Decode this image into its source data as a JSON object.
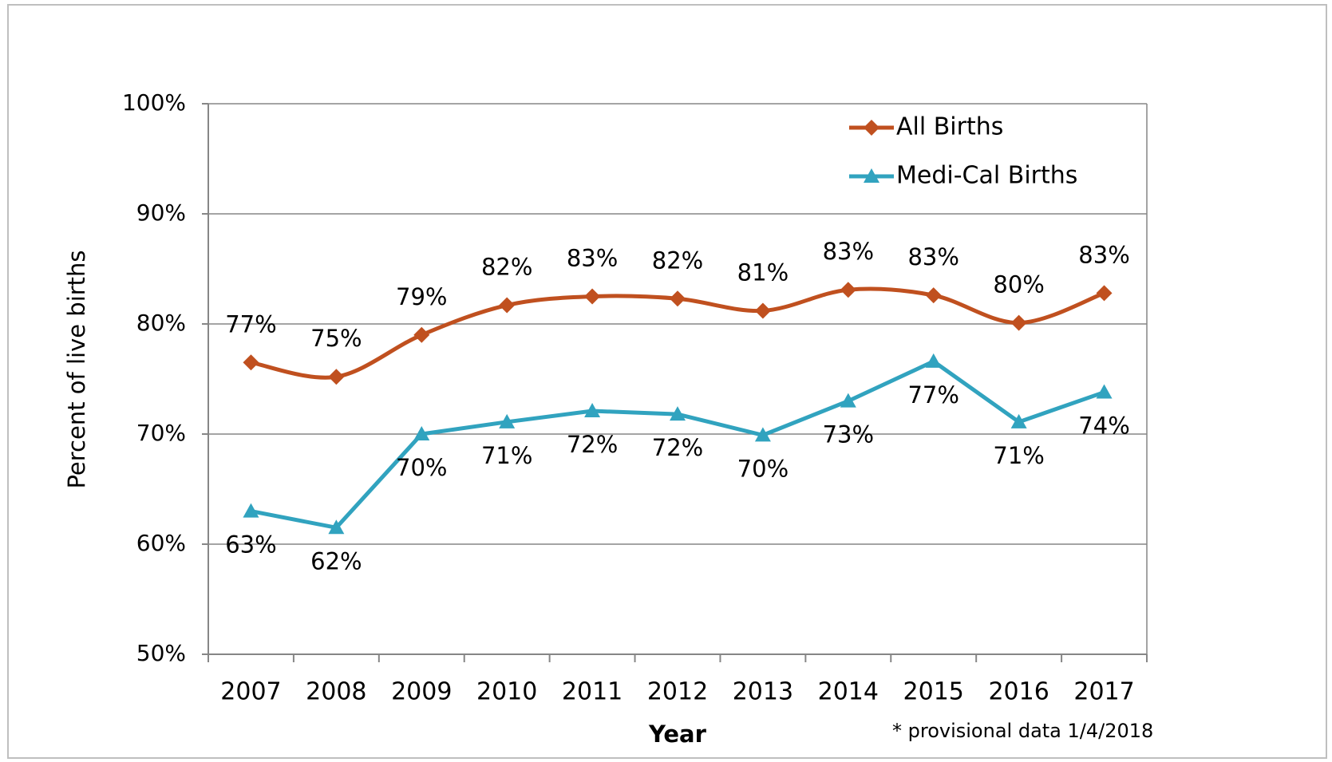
{
  "chart_data": {
    "type": "line",
    "xlabel": "Year",
    "ylabel": "Percent of live births",
    "footnote": "* provisional data 1/4/2018",
    "categories": [
      "2007",
      "2008",
      "2009",
      "2010",
      "2011",
      "2012",
      "2013",
      "2014",
      "2015",
      "2016",
      "2017"
    ],
    "ylim": [
      50,
      100
    ],
    "yticks": [
      {
        "value": 50,
        "label": "50%"
      },
      {
        "value": 60,
        "label": "60%"
      },
      {
        "value": 70,
        "label": "70%"
      },
      {
        "value": 80,
        "label": "80%"
      },
      {
        "value": 90,
        "label": "90%"
      },
      {
        "value": 100,
        "label": "100%"
      }
    ],
    "grid": true,
    "legend": "upper right",
    "series": [
      {
        "name": "All Births",
        "color": "#c0501f",
        "marker": "diamond",
        "smooth": true,
        "values": [
          76.5,
          75.2,
          79.0,
          81.7,
          82.5,
          82.3,
          81.2,
          83.1,
          82.6,
          80.1,
          82.8
        ],
        "value_labels": [
          "77%",
          "75%",
          "79%",
          "82%",
          "83%",
          "82%",
          "81%",
          "83%",
          "83%",
          "80%",
          "83%"
        ]
      },
      {
        "name": "Medi-Cal Births",
        "color": "#31a3bf",
        "marker": "triangle",
        "smooth": false,
        "values": [
          63.0,
          61.5,
          70.0,
          71.1,
          72.1,
          71.8,
          69.9,
          73.0,
          76.6,
          71.1,
          73.8
        ],
        "value_labels": [
          "63%",
          "62%",
          "70%",
          "71%",
          "72%",
          "72%",
          "70%",
          "73%",
          "77%",
          "71%",
          "74%"
        ]
      }
    ]
  }
}
